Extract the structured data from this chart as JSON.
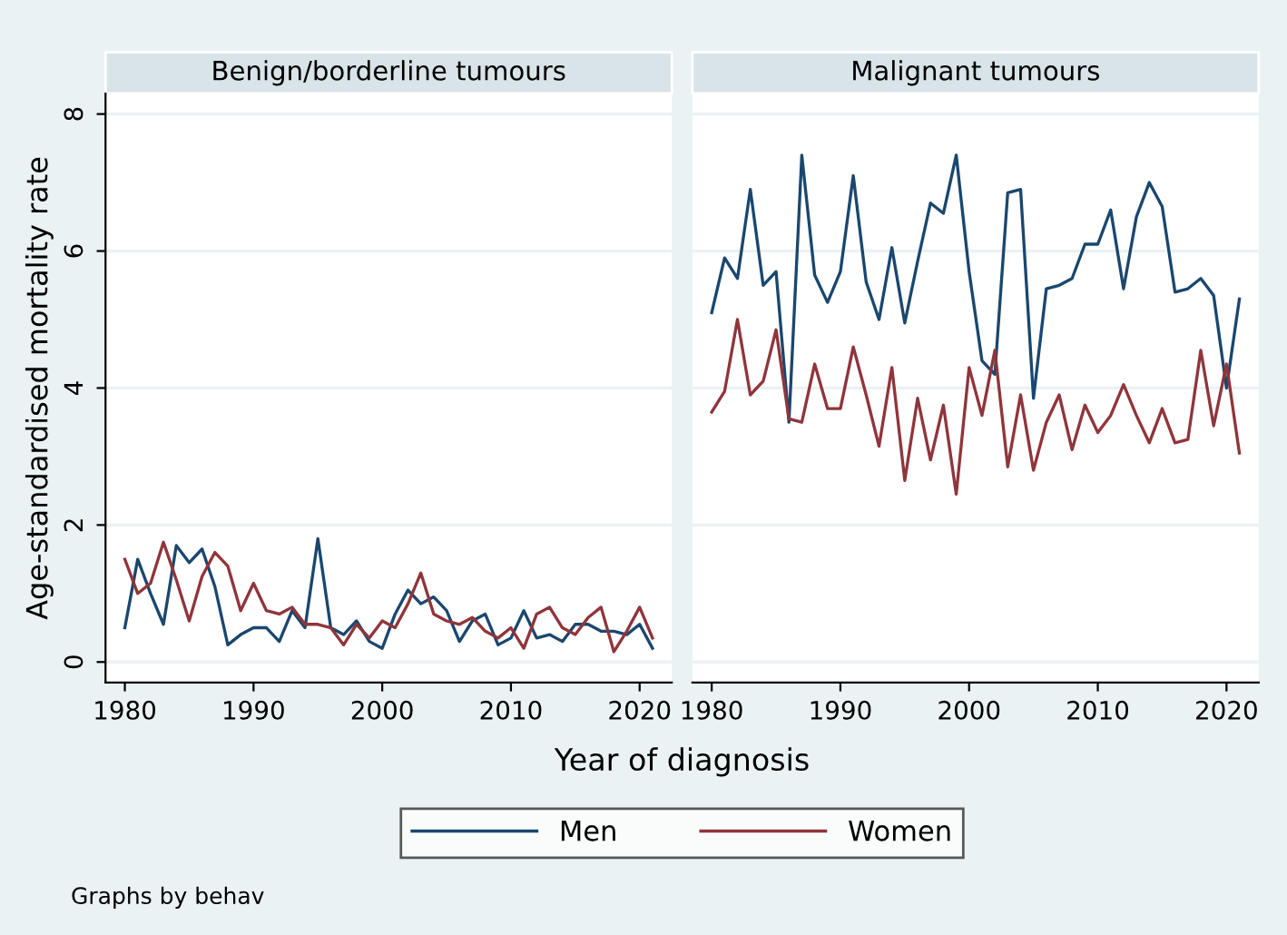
{
  "chart_data": [
    {
      "type": "line",
      "title": "Benign/borderline tumours",
      "ylabel": "Age-standardised mortality rate",
      "xlabel": "Year of diagnosis",
      "x": [
        1980,
        1981,
        1982,
        1983,
        1984,
        1985,
        1986,
        1987,
        1988,
        1989,
        1990,
        1991,
        1992,
        1993,
        1994,
        1995,
        1996,
        1997,
        1998,
        1999,
        2000,
        2001,
        2002,
        2003,
        2004,
        2005,
        2006,
        2007,
        2008,
        2009,
        2010,
        2011,
        2012,
        2013,
        2014,
        2015,
        2016,
        2017,
        2018,
        2019,
        2020,
        2021
      ],
      "series": [
        {
          "name": "Men",
          "color": "#1a476f",
          "values": [
            0.5,
            1.5,
            1.0,
            0.55,
            1.7,
            1.45,
            1.65,
            1.1,
            0.25,
            0.4,
            0.5,
            0.5,
            0.3,
            0.75,
            0.5,
            1.8,
            0.5,
            0.4,
            0.6,
            0.3,
            0.2,
            0.7,
            1.05,
            0.85,
            0.95,
            0.75,
            0.3,
            0.6,
            0.7,
            0.25,
            0.35,
            0.75,
            0.35,
            0.4,
            0.3,
            0.55,
            0.55,
            0.45,
            0.45,
            0.4,
            0.55,
            0.2
          ]
        },
        {
          "name": "Women",
          "color": "#90353b",
          "values": [
            1.5,
            1.0,
            1.15,
            1.75,
            1.2,
            0.6,
            1.25,
            1.6,
            1.4,
            0.75,
            1.15,
            0.75,
            0.7,
            0.8,
            0.55,
            0.55,
            0.5,
            0.25,
            0.55,
            0.35,
            0.6,
            0.5,
            0.85,
            1.3,
            0.7,
            0.6,
            0.55,
            0.65,
            0.45,
            0.35,
            0.5,
            0.2,
            0.7,
            0.8,
            0.5,
            0.4,
            0.65,
            0.8,
            0.15,
            0.45,
            0.8,
            0.35
          ]
        }
      ],
      "xlim": [
        1978.5,
        2022.5
      ],
      "ylim": [
        -0.3,
        8.3
      ],
      "xticks": [
        1980,
        1990,
        2000,
        2010,
        2020
      ],
      "yticks": [
        0,
        2,
        4,
        6,
        8
      ],
      "grid": "y",
      "legend": "bottom",
      "annotations": [
        "Graphs by behav"
      ]
    },
    {
      "type": "line",
      "title": "Malignant tumours",
      "x": [
        1980,
        1981,
        1982,
        1983,
        1984,
        1985,
        1986,
        1987,
        1988,
        1989,
        1990,
        1991,
        1992,
        1993,
        1994,
        1995,
        1996,
        1997,
        1998,
        1999,
        2000,
        2001,
        2002,
        2003,
        2004,
        2005,
        2006,
        2007,
        2008,
        2009,
        2010,
        2011,
        2012,
        2013,
        2014,
        2015,
        2016,
        2017,
        2018,
        2019,
        2020,
        2021
      ],
      "series": [
        {
          "color": "#1a476f",
          "values": [
            5.1,
            5.9,
            5.6,
            6.9,
            5.5,
            5.7,
            3.5,
            7.4,
            5.65,
            5.25,
            5.7,
            7.1,
            5.55,
            5.0,
            6.05,
            4.95,
            5.85,
            6.7,
            6.55,
            7.4,
            5.7,
            4.4,
            4.2,
            6.85,
            6.9,
            3.85,
            5.45,
            5.5,
            5.6,
            6.1,
            6.1,
            6.6,
            5.45,
            6.5,
            7.0,
            6.65,
            5.4,
            5.45,
            5.6,
            5.35,
            4.0,
            5.3
          ]
        },
        {
          "color": "#90353b",
          "values": [
            3.65,
            3.95,
            5.0,
            3.9,
            4.1,
            4.85,
            3.55,
            3.5,
            4.35,
            3.7,
            3.7,
            4.6,
            3.9,
            3.15,
            4.3,
            2.65,
            3.85,
            2.95,
            3.75,
            2.45,
            4.3,
            3.6,
            4.55,
            2.85,
            3.9,
            2.8,
            3.5,
            3.9,
            3.1,
            3.75,
            3.35,
            3.6,
            4.05,
            3.6,
            3.2,
            3.7,
            3.2,
            3.25,
            4.55,
            3.45,
            4.35,
            3.05
          ]
        }
      ],
      "xlim": [
        1978.5,
        2022.5
      ],
      "ylim": [
        -0.3,
        8.3
      ],
      "xticks": [
        1980,
        1990,
        2000,
        2010,
        2020
      ],
      "yticks": [
        0,
        2,
        4,
        6,
        8
      ],
      "grid": "y",
      "tick_labels": "x"
    }
  ]
}
